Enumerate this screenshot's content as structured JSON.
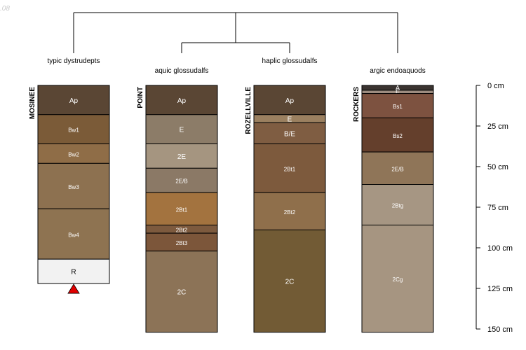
{
  "watermark": ".08",
  "depth_axis": {
    "ticks": [
      {
        "depth": 0,
        "label": "0 cm"
      },
      {
        "depth": 25,
        "label": "25 cm"
      },
      {
        "depth": 50,
        "label": "50 cm"
      },
      {
        "depth": 75,
        "label": "75 cm"
      },
      {
        "depth": 100,
        "label": "100 cm"
      },
      {
        "depth": 125,
        "label": "125 cm"
      },
      {
        "depth": 150,
        "label": "150 cm"
      }
    ]
  },
  "profiles": [
    {
      "name": "MOSINEE",
      "taxon": "typic dystrudepts",
      "bedrock_marker": true,
      "horizons": [
        {
          "name": "Ap",
          "top": 0,
          "bottom": 18,
          "color": "#5a4634",
          "text_color": "#ffffff"
        },
        {
          "name": "Bw1",
          "top": 18,
          "bottom": 36,
          "color": "#7b5b38",
          "text_color": "#ffffff"
        },
        {
          "name": "Bw2",
          "top": 36,
          "bottom": 48,
          "color": "#8f6d47",
          "text_color": "#ffffff"
        },
        {
          "name": "Bw3",
          "top": 48,
          "bottom": 76,
          "color": "#8d7150",
          "text_color": "#ffffff"
        },
        {
          "name": "Bw4",
          "top": 76,
          "bottom": 107,
          "color": "#8e7351",
          "text_color": "#ffffff"
        },
        {
          "name": "R",
          "top": 107,
          "bottom": 122,
          "color": "#f2f2f2",
          "text_color": "#000000"
        }
      ]
    },
    {
      "name": "POINT",
      "taxon": "aquic glossudalfs",
      "bedrock_marker": false,
      "horizons": [
        {
          "name": "Ap",
          "top": 0,
          "bottom": 18,
          "color": "#5a4634",
          "text_color": "#ffffff"
        },
        {
          "name": "E",
          "top": 18,
          "bottom": 36,
          "color": "#8c7c68",
          "text_color": "#ffffff"
        },
        {
          "name": "2E",
          "top": 36,
          "bottom": 51,
          "color": "#a59580",
          "text_color": "#ffffff"
        },
        {
          "name": "2E/B",
          "top": 51,
          "bottom": 66,
          "color": "#8b7966",
          "text_color": "#ffffff"
        },
        {
          "name": "2Bt1",
          "top": 66,
          "bottom": 86,
          "color": "#a3733f",
          "text_color": "#ffffff"
        },
        {
          "name": "2Bt2",
          "top": 86,
          "bottom": 91,
          "color": "#7d5a3e",
          "text_color": "#ffffff"
        },
        {
          "name": "2Bt3",
          "top": 91,
          "bottom": 102,
          "color": "#7c563a",
          "text_color": "#ffffff"
        },
        {
          "name": "2C",
          "top": 102,
          "bottom": 152,
          "color": "#8c7357",
          "text_color": "#ffffff"
        }
      ]
    },
    {
      "name": "ROZELLVILLE",
      "taxon": "haplic glossudalfs",
      "bedrock_marker": false,
      "horizons": [
        {
          "name": "Ap",
          "top": 0,
          "bottom": 18,
          "color": "#5a4634",
          "text_color": "#ffffff"
        },
        {
          "name": "E",
          "top": 18,
          "bottom": 23,
          "color": "#9b8060",
          "text_color": "#ffffff"
        },
        {
          "name": "B/E",
          "top": 23,
          "bottom": 36,
          "color": "#7f5d42",
          "text_color": "#ffffff"
        },
        {
          "name": "2Bt1",
          "top": 36,
          "bottom": 66,
          "color": "#7d5a3d",
          "text_color": "#ffffff"
        },
        {
          "name": "2Bt2",
          "top": 66,
          "bottom": 89,
          "color": "#8f6f4b",
          "text_color": "#ffffff"
        },
        {
          "name": "2C",
          "top": 89,
          "bottom": 152,
          "color": "#725b35",
          "text_color": "#ffffff"
        }
      ]
    },
    {
      "name": "ROCKERS",
      "taxon": "argic endoaquods",
      "bedrock_marker": false,
      "horizons": [
        {
          "name": "A",
          "top": 0,
          "bottom": 3,
          "color": "#3a3330",
          "text_color": "#ffffff"
        },
        {
          "name": "E",
          "top": 3,
          "bottom": 5,
          "color": "#9c8c80",
          "text_color": "#ffffff"
        },
        {
          "name": "Bs1",
          "top": 5,
          "bottom": 20,
          "color": "#7d5240",
          "text_color": "#ffffff"
        },
        {
          "name": "Bs2",
          "top": 20,
          "bottom": 41,
          "color": "#643f2c",
          "text_color": "#ffffff"
        },
        {
          "name": "2E/B",
          "top": 41,
          "bottom": 61,
          "color": "#8f7558",
          "text_color": "#ffffff"
        },
        {
          "name": "2Btg",
          "top": 61,
          "bottom": 86,
          "color": "#a69683",
          "text_color": "#ffffff"
        },
        {
          "name": "2Cg",
          "top": 86,
          "bottom": 152,
          "color": "#a69581",
          "text_color": "#ffffff"
        }
      ]
    }
  ]
}
